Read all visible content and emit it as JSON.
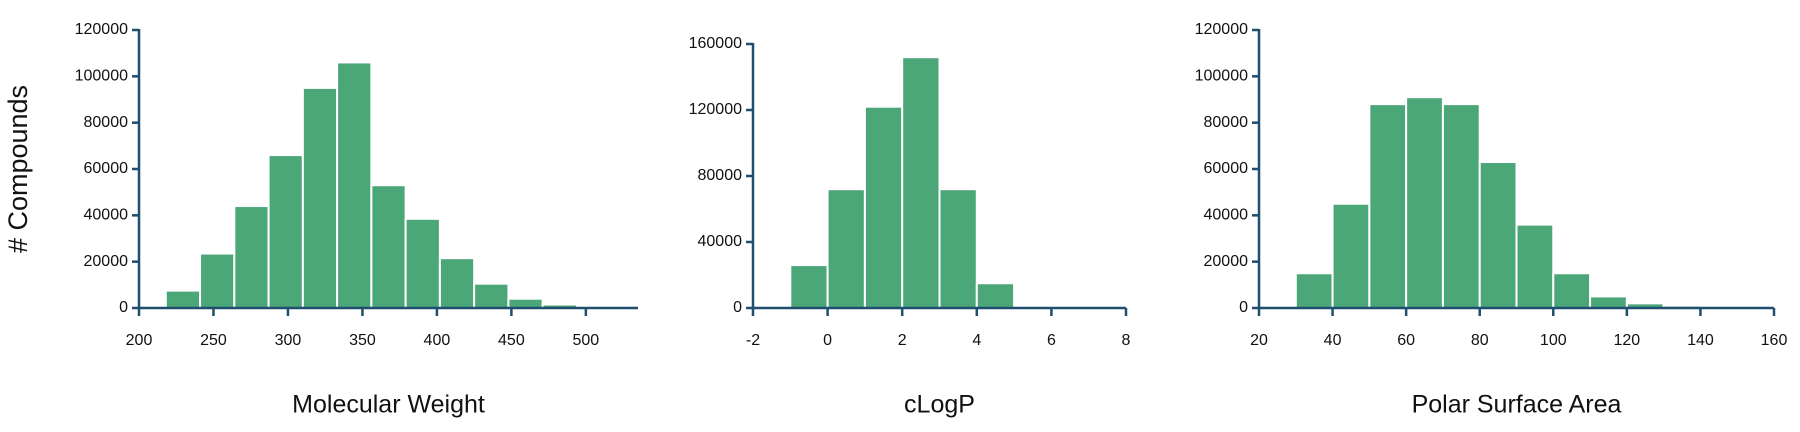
{
  "chart_data": [
    {
      "type": "histogram",
      "ylabel": "# Compounds",
      "xlabel": "Molecular Weight",
      "color": "#4ba678",
      "bins": [
        218,
        241,
        264,
        287,
        310,
        333,
        356,
        379,
        402,
        425,
        448,
        471,
        494
      ],
      "counts": [
        7500,
        23500,
        44000,
        66000,
        95000,
        106000,
        53000,
        38500,
        21500,
        10500,
        4000,
        1500
      ],
      "xlim": [
        200,
        535
      ],
      "xticks": [
        200,
        250,
        300,
        350,
        400,
        450,
        500
      ],
      "ylim": [
        0,
        120000
      ],
      "yticks": [
        0,
        20000,
        40000,
        60000,
        80000,
        100000,
        120000
      ]
    },
    {
      "type": "histogram",
      "xlabel": "cLogP",
      "color": "#4ba678",
      "bins": [
        -1,
        0,
        1,
        2,
        3,
        4,
        5
      ],
      "counts": [
        26000,
        72000,
        122000,
        152000,
        72000,
        15000
      ],
      "xlim": [
        -2,
        8
      ],
      "xticks": [
        -2,
        0,
        2,
        4,
        6,
        8
      ],
      "ylim": [
        0,
        160000
      ],
      "yticks": [
        0,
        40000,
        80000,
        120000,
        160000
      ]
    },
    {
      "type": "histogram",
      "xlabel": "Polar Surface Area",
      "color": "#4ba678",
      "bins": [
        30,
        40,
        50,
        60,
        70,
        80,
        90,
        100,
        110,
        120,
        130,
        140
      ],
      "counts": [
        15000,
        45000,
        88000,
        91000,
        88000,
        63000,
        36000,
        15000,
        5000,
        2000,
        1000
      ],
      "xlim": [
        20,
        160
      ],
      "xticks": [
        20,
        40,
        60,
        80,
        100,
        120,
        140,
        160
      ],
      "ylim": [
        0,
        120000
      ],
      "yticks": [
        0,
        20000,
        40000,
        60000,
        80000,
        100000,
        120000
      ]
    }
  ]
}
